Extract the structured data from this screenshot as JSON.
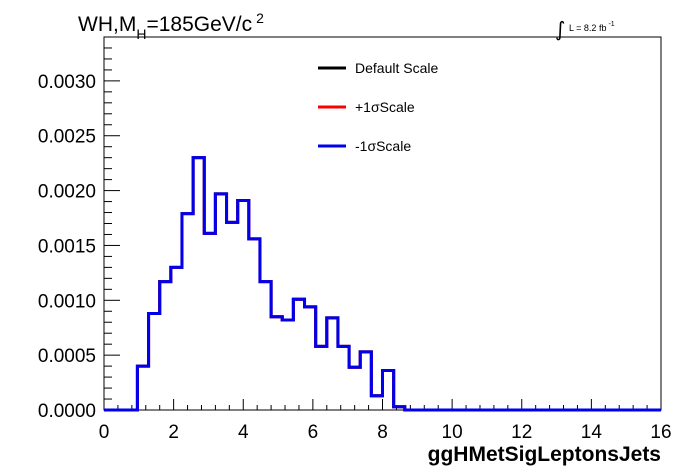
{
  "chart_data": {
    "type": "line",
    "title": {
      "prefix": "WH,M",
      "subscript": "H",
      "middle": "=185GeV/c",
      "superscript": "2"
    },
    "luminosity": {
      "integral_sign": "∫",
      "text": "L = 8.2 fb",
      "superscript": "-1"
    },
    "xlabel": "ggHMetSigLeptonsJets",
    "ylabel": "",
    "xlim": [
      0,
      16
    ],
    "ylim": [
      0,
      0.0034
    ],
    "x_ticks": [
      "0",
      "2",
      "4",
      "6",
      "8",
      "10",
      "12",
      "14",
      "16"
    ],
    "y_ticks": [
      "0.0000",
      "0.0005",
      "0.0010",
      "0.0015",
      "0.0020",
      "0.0025",
      "0.0030"
    ],
    "grid": false,
    "legend_position": "top-center",
    "bin_edges": [
      0,
      0.32,
      0.64,
      0.96,
      1.28,
      1.6,
      1.92,
      2.24,
      2.56,
      2.88,
      3.2,
      3.52,
      3.84,
      4.16,
      4.48,
      4.8,
      5.12,
      5.44,
      5.76,
      6.08,
      6.4,
      6.72,
      7.04,
      7.36,
      7.68,
      8.0,
      8.32,
      8.64,
      8.96,
      9.28,
      9.6,
      9.92,
      10.24,
      10.56,
      10.88,
      11.2,
      11.52,
      11.84,
      12.16,
      12.48,
      12.8,
      13.12,
      13.44,
      13.76,
      14.08,
      14.4,
      14.72,
      15.04,
      15.36,
      15.68,
      16.0
    ],
    "series": [
      {
        "name": "Default Scale",
        "color": "#000000",
        "values": [
          0,
          0,
          0,
          0.0004,
          0.00088,
          0.00117,
          0.0013,
          0.00179,
          0.0023,
          0.00161,
          0.00197,
          0.00171,
          0.00191,
          0.00156,
          0.00117,
          0.00085,
          0.00082,
          0.00101,
          0.00094,
          0.00058,
          0.00084,
          0.00058,
          0.00039,
          0.00053,
          0.00013,
          0.00036,
          3e-05,
          0,
          0,
          0,
          0,
          0,
          0,
          0,
          0,
          0,
          0,
          0,
          0,
          0,
          0,
          0,
          0,
          0,
          0,
          0,
          0,
          0,
          0,
          0
        ]
      },
      {
        "name": "+1σScale",
        "color": "#ff0000",
        "values": [
          0,
          0,
          0,
          0.0004,
          0.00088,
          0.00117,
          0.0013,
          0.00179,
          0.0023,
          0.00161,
          0.00197,
          0.00171,
          0.00191,
          0.00156,
          0.00117,
          0.00085,
          0.00082,
          0.00101,
          0.00094,
          0.00058,
          0.00084,
          0.00058,
          0.00039,
          0.00053,
          0.00013,
          0.00036,
          3e-05,
          0,
          0,
          0,
          0,
          0,
          0,
          0,
          0,
          0,
          0,
          0,
          0,
          0,
          0,
          0,
          0,
          0,
          0,
          0,
          0,
          0,
          0,
          0
        ]
      },
      {
        "name": "-1σScale",
        "color": "#0000ee",
        "values": [
          0,
          0,
          0,
          0.0004,
          0.00088,
          0.00117,
          0.0013,
          0.00179,
          0.0023,
          0.00161,
          0.00197,
          0.00171,
          0.00191,
          0.00156,
          0.00117,
          0.00085,
          0.00082,
          0.00101,
          0.00094,
          0.00058,
          0.00084,
          0.00058,
          0.00039,
          0.00053,
          0.00013,
          0.00036,
          3e-05,
          0,
          0,
          0,
          0,
          0,
          0,
          0,
          0,
          0,
          0,
          0,
          0,
          0,
          0,
          0,
          0,
          0,
          0,
          0,
          0,
          0,
          0,
          0
        ]
      }
    ]
  }
}
